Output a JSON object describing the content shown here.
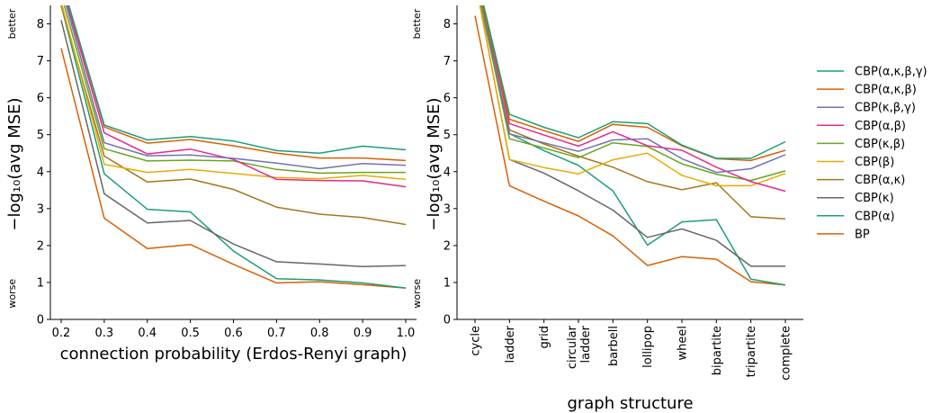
{
  "legend": [
    {
      "name": "CBP(α,κ,β,γ)",
      "color": "#1b9e77"
    },
    {
      "name": "CBP(α,κ,β)",
      "color": "#d95f02"
    },
    {
      "name": "CBP(κ,β,γ)",
      "color": "#7570b3"
    },
    {
      "name": "CBP(α,β)",
      "color": "#e7298a"
    },
    {
      "name": "CBP(κ,β)",
      "color": "#66a61e"
    },
    {
      "name": "CBP(β)",
      "color": "#e6ab02"
    },
    {
      "name": "CBP(α,κ)",
      "color": "#a6761d"
    },
    {
      "name": "CBP(κ)",
      "color": "#666666"
    },
    {
      "name": "CBP(α)",
      "color": "#1b9e77"
    },
    {
      "name": "BP",
      "color": "#d95f02"
    }
  ],
  "chart_data": [
    {
      "type": "line",
      "xlabel": "connection probability (Erdos-Renyi graph)",
      "ylabel": "−log₁₀(avg MSE)",
      "y_top_note": "better",
      "y_bottom_note": "worse",
      "x": [
        "0.2",
        "0.3",
        "0.4",
        "0.5",
        "0.6",
        "0.7",
        "0.8",
        "0.9",
        "1.0"
      ],
      "x_ticks": [
        "0.2",
        "0.3",
        "0.4",
        "0.5",
        "0.6",
        "0.7",
        "0.8",
        "0.9",
        "1.0"
      ],
      "y_ticks": [
        0,
        1,
        2,
        3,
        4,
        5,
        6,
        7,
        8
      ],
      "ylim": [
        0,
        8.5
      ],
      "series": [
        {
          "name": "CBP(α,κ,β,γ)",
          "values": [
            9.2,
            5.26,
            4.86,
            4.95,
            4.83,
            4.57,
            4.5,
            4.69,
            4.59
          ]
        },
        {
          "name": "CBP(α,κ,β)",
          "values": [
            9.2,
            5.21,
            4.77,
            4.87,
            4.7,
            4.5,
            4.37,
            4.37,
            4.3
          ]
        },
        {
          "name": "CBP(κ,β,γ)",
          "values": [
            9.0,
            4.78,
            4.43,
            4.45,
            4.36,
            4.23,
            4.08,
            4.22,
            4.17
          ]
        },
        {
          "name": "CBP(α,β)",
          "values": [
            9.1,
            5.05,
            4.48,
            4.61,
            4.33,
            3.79,
            3.76,
            3.75,
            3.59
          ]
        },
        {
          "name": "CBP(κ,β)",
          "values": [
            8.8,
            4.62,
            4.29,
            4.31,
            4.29,
            4.06,
            3.96,
            3.98,
            3.98
          ]
        },
        {
          "name": "CBP(β)",
          "values": [
            8.6,
            4.2,
            3.98,
            4.06,
            3.95,
            3.84,
            3.81,
            3.9,
            3.79
          ]
        },
        {
          "name": "CBP(α,κ)",
          "values": [
            8.5,
            4.42,
            3.72,
            3.8,
            3.52,
            3.04,
            2.85,
            2.76,
            2.57
          ]
        },
        {
          "name": "CBP(κ)",
          "values": [
            8.1,
            3.4,
            2.61,
            2.68,
            2.04,
            1.56,
            1.5,
            1.43,
            1.46
          ]
        },
        {
          "name": "CBP(α)",
          "values": [
            8.5,
            3.94,
            2.98,
            2.91,
            1.85,
            1.1,
            1.07,
            0.99,
            0.85
          ]
        },
        {
          "name": "BP",
          "values": [
            7.34,
            2.74,
            1.92,
            2.03,
            1.49,
            0.99,
            1.02,
            0.94,
            0.85
          ]
        }
      ]
    },
    {
      "type": "line",
      "xlabel": "graph structure",
      "ylabel": "−log₁₀(avg MSE)",
      "y_top_note": "better",
      "y_bottom_note": "worse",
      "categories": [
        "cycle",
        "ladder",
        "grid",
        "circular\nladder",
        "barbell",
        "lollipop",
        "wheel",
        "bipartite",
        "tripartite",
        "complete"
      ],
      "category_labels": [
        "cycle",
        "ladder",
        "grid",
        "circular ladder",
        "barbell",
        "lollipop",
        "wheel",
        "bipartite",
        "tripartite",
        "complete"
      ],
      "y_ticks": [
        0,
        1,
        2,
        3,
        4,
        5,
        6,
        7,
        8
      ],
      "ylim": [
        0,
        8.5
      ],
      "series": [
        {
          "name": "CBP(α,κ,β,γ)",
          "values": [
            9.5,
            5.55,
            5.2,
            4.92,
            5.35,
            5.3,
            4.72,
            4.36,
            4.36,
            4.81
          ]
        },
        {
          "name": "CBP(α,κ,β)",
          "values": [
            9.4,
            5.42,
            5.11,
            4.82,
            5.28,
            5.2,
            4.7,
            4.35,
            4.3,
            4.58
          ]
        },
        {
          "name": "CBP(κ,β,γ)",
          "values": [
            9.4,
            5.02,
            4.78,
            4.55,
            4.86,
            4.89,
            4.35,
            3.98,
            4.08,
            4.46
          ]
        },
        {
          "name": "CBP(α,β)",
          "values": [
            9.4,
            5.3,
            4.99,
            4.69,
            5.08,
            4.7,
            4.58,
            4.12,
            3.73,
            3.47
          ]
        },
        {
          "name": "CBP(κ,β)",
          "values": [
            9.3,
            4.89,
            4.64,
            4.38,
            4.78,
            4.68,
            4.21,
            3.93,
            3.76,
            4.02
          ]
        },
        {
          "name": "CBP(β)",
          "values": [
            9.2,
            4.33,
            4.11,
            3.94,
            4.32,
            4.5,
            3.9,
            3.62,
            3.62,
            3.95
          ]
        },
        {
          "name": "CBP(α,κ)",
          "values": [
            9.2,
            5.13,
            4.75,
            4.42,
            4.12,
            3.73,
            3.51,
            3.7,
            2.78,
            2.72
          ]
        },
        {
          "name": "CBP(κ)",
          "values": [
            9.2,
            4.33,
            3.96,
            3.48,
            2.96,
            2.22,
            2.45,
            2.14,
            1.44,
            1.44
          ]
        },
        {
          "name": "CBP(α)",
          "values": [
            9.2,
            5.03,
            4.57,
            4.17,
            3.48,
            2.01,
            2.64,
            2.7,
            1.09,
            0.93
          ]
        },
        {
          "name": "BP",
          "values": [
            8.22,
            3.62,
            3.2,
            2.8,
            2.26,
            1.46,
            1.7,
            1.63,
            1.02,
            0.93
          ]
        }
      ]
    }
  ]
}
